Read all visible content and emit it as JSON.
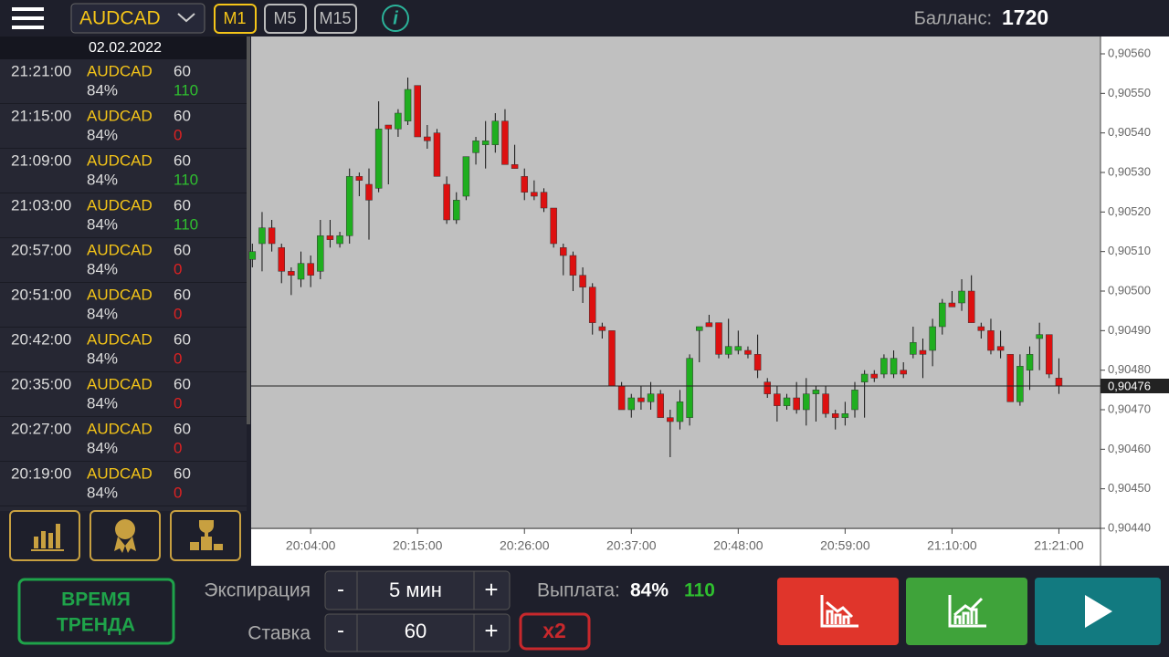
{
  "header": {
    "asset": "AUDCAD",
    "timeframes": [
      "M1",
      "M5",
      "M15"
    ],
    "balance_label": "Балланс:",
    "balance": 1720
  },
  "trades": {
    "date": "02.02.2022",
    "rows": [
      {
        "time": "21:21:00",
        "asset": "AUDCAD",
        "percent": "84%",
        "amount": 60,
        "result": 110
      },
      {
        "time": "21:15:00",
        "asset": "AUDCAD",
        "percent": "84%",
        "amount": 60,
        "result": 0
      },
      {
        "time": "21:09:00",
        "asset": "AUDCAD",
        "percent": "84%",
        "amount": 60,
        "result": 110
      },
      {
        "time": "21:03:00",
        "asset": "AUDCAD",
        "percent": "84%",
        "amount": 60,
        "result": 110
      },
      {
        "time": "20:57:00",
        "asset": "AUDCAD",
        "percent": "84%",
        "amount": 60,
        "result": 0
      },
      {
        "time": "20:51:00",
        "asset": "AUDCAD",
        "percent": "84%",
        "amount": 60,
        "result": 0
      },
      {
        "time": "20:42:00",
        "asset": "AUDCAD",
        "percent": "84%",
        "amount": 60,
        "result": 0
      },
      {
        "time": "20:35:00",
        "asset": "AUDCAD",
        "percent": "84%",
        "amount": 60,
        "result": 0
      },
      {
        "time": "20:27:00",
        "asset": "AUDCAD",
        "percent": "84%",
        "amount": 60,
        "result": 0
      },
      {
        "time": "20:19:00",
        "asset": "AUDCAD",
        "percent": "84%",
        "amount": 60,
        "result": 0
      }
    ]
  },
  "chart_data": {
    "type": "candlestick",
    "up_color": "#1fae1f",
    "down_color": "#dd1010",
    "x": [
      "19:58:00",
      "19:59:00",
      "20:00:00",
      "20:01:00",
      "20:02:00",
      "20:03:00",
      "20:04:00",
      "20:05:00",
      "20:06:00",
      "20:07:00",
      "20:08:00",
      "20:09:00",
      "20:10:00",
      "20:11:00",
      "20:12:00",
      "20:13:00",
      "20:14:00",
      "20:15:00",
      "20:16:00",
      "20:17:00",
      "20:18:00",
      "20:19:00",
      "20:20:00",
      "20:21:00",
      "20:22:00",
      "20:23:00",
      "20:24:00",
      "20:25:00",
      "20:26:00",
      "20:27:00",
      "20:28:00",
      "20:29:00",
      "20:30:00",
      "20:31:00",
      "20:32:00",
      "20:33:00",
      "20:34:00",
      "20:35:00",
      "20:36:00",
      "20:37:00",
      "20:38:00",
      "20:39:00",
      "20:40:00",
      "20:41:00",
      "20:42:00",
      "20:43:00",
      "20:44:00",
      "20:45:00",
      "20:46:00",
      "20:47:00",
      "20:48:00",
      "20:49:00",
      "20:50:00",
      "20:51:00",
      "20:52:00",
      "20:53:00",
      "20:54:00",
      "20:55:00",
      "20:56:00",
      "20:57:00",
      "20:58:00",
      "20:59:00",
      "21:00:00",
      "21:01:00",
      "21:02:00",
      "21:03:00",
      "21:04:00",
      "21:05:00",
      "21:06:00",
      "21:07:00",
      "21:08:00",
      "21:09:00",
      "21:10:00",
      "21:11:00",
      "21:12:00",
      "21:13:00",
      "21:14:00",
      "21:15:00",
      "21:16:00",
      "21:17:00",
      "21:18:00",
      "21:19:00",
      "21:20:00",
      "21:21:00"
    ],
    "open": [
      0.90508,
      0.90512,
      0.90516,
      0.90511,
      0.90505,
      0.90503,
      0.90507,
      0.90505,
      0.90514,
      0.90512,
      0.90514,
      0.90529,
      0.90527,
      0.90526,
      0.90542,
      0.90541,
      0.90543,
      0.90552,
      0.90539,
      0.9054,
      0.90527,
      0.90518,
      0.90524,
      0.90535,
      0.90537,
      0.90537,
      0.90543,
      0.90532,
      0.90529,
      0.90525,
      0.90525,
      0.90521,
      0.90511,
      0.90509,
      0.90504,
      0.90501,
      0.90491,
      0.9049,
      0.90476,
      0.9047,
      0.90473,
      0.90472,
      0.90474,
      0.90468,
      0.90467,
      0.90468,
      0.9049,
      0.90492,
      0.90492,
      0.90484,
      0.90485,
      0.90485,
      0.90484,
      0.90477,
      0.90474,
      0.90471,
      0.90473,
      0.9047,
      0.90474,
      0.90474,
      0.90469,
      0.90468,
      0.9047,
      0.90477,
      0.90479,
      0.90479,
      0.90479,
      0.9048,
      0.90484,
      0.90485,
      0.90485,
      0.90491,
      0.90497,
      0.90497,
      0.905,
      0.90491,
      0.9049,
      0.90486,
      0.90484,
      0.90472,
      0.9048,
      0.90488,
      0.90489,
      0.90478
    ],
    "high": [
      0.90512,
      0.9052,
      0.90518,
      0.90512,
      0.90506,
      0.9051,
      0.90509,
      0.90518,
      0.90518,
      0.90515,
      0.90531,
      0.9053,
      0.90531,
      0.90548,
      0.90542,
      0.90546,
      0.90554,
      0.90552,
      0.90542,
      0.90541,
      0.90529,
      0.90525,
      0.90534,
      0.90539,
      0.90543,
      0.90545,
      0.90546,
      0.90537,
      0.90531,
      0.90528,
      0.90526,
      0.90521,
      0.90512,
      0.9051,
      0.90506,
      0.90502,
      0.90492,
      0.9049,
      0.90477,
      0.90474,
      0.90476,
      0.90477,
      0.90475,
      0.9047,
      0.90475,
      0.90484,
      0.90491,
      0.90494,
      0.90492,
      0.90493,
      0.9049,
      0.90486,
      0.90489,
      0.90478,
      0.90476,
      0.90474,
      0.90477,
      0.90478,
      0.90476,
      0.90476,
      0.9047,
      0.90472,
      0.90477,
      0.9048,
      0.9048,
      0.90484,
      0.90485,
      0.90482,
      0.90491,
      0.90488,
      0.90493,
      0.90498,
      0.905,
      0.90503,
      0.90504,
      0.90492,
      0.90493,
      0.9049,
      0.90484,
      0.90484,
      0.90486,
      0.90492,
      0.90489,
      0.90483
    ],
    "low": [
      0.90506,
      0.90505,
      0.9051,
      0.90502,
      0.90499,
      0.90501,
      0.90501,
      0.90503,
      0.90511,
      0.90511,
      0.90512,
      0.90524,
      0.90513,
      0.90525,
      0.90527,
      0.90539,
      0.90542,
      0.90539,
      0.90536,
      0.90529,
      0.90517,
      0.90517,
      0.90523,
      0.90532,
      0.90531,
      0.90535,
      0.90532,
      0.90531,
      0.90523,
      0.90523,
      0.9052,
      0.90511,
      0.90504,
      0.905,
      0.90497,
      0.90489,
      0.90488,
      0.90476,
      0.9047,
      0.90468,
      0.9047,
      0.9047,
      0.90468,
      0.90458,
      0.90465,
      0.90466,
      0.90482,
      0.90491,
      0.90483,
      0.90483,
      0.90484,
      0.90483,
      0.90478,
      0.90473,
      0.90467,
      0.9047,
      0.90469,
      0.90466,
      0.90467,
      0.90468,
      0.90465,
      0.90466,
      0.90468,
      0.90468,
      0.90477,
      0.90478,
      0.90478,
      0.90478,
      0.90483,
      0.90478,
      0.90481,
      0.90489,
      0.90496,
      0.90495,
      0.90492,
      0.90488,
      0.90484,
      0.90483,
      0.90472,
      0.90471,
      0.90475,
      0.9048,
      0.90478,
      0.90474
    ],
    "close": [
      0.9051,
      0.90516,
      0.90512,
      0.90505,
      0.90504,
      0.90507,
      0.90504,
      0.90514,
      0.90513,
      0.90514,
      0.90529,
      0.90528,
      0.90523,
      0.90541,
      0.90541,
      0.90545,
      0.90551,
      0.90539,
      0.90538,
      0.90529,
      0.90518,
      0.90523,
      0.90534,
      0.90538,
      0.90538,
      0.90543,
      0.90532,
      0.90531,
      0.90525,
      0.90524,
      0.90521,
      0.90512,
      0.90509,
      0.90504,
      0.90501,
      0.90492,
      0.9049,
      0.90476,
      0.9047,
      0.90473,
      0.90472,
      0.90474,
      0.90468,
      0.90467,
      0.90472,
      0.90483,
      0.90491,
      0.90491,
      0.90484,
      0.90486,
      0.90486,
      0.90484,
      0.9048,
      0.90474,
      0.90471,
      0.90473,
      0.9047,
      0.90474,
      0.90475,
      0.90469,
      0.90468,
      0.90469,
      0.90475,
      0.90479,
      0.90478,
      0.90483,
      0.90483,
      0.90479,
      0.90487,
      0.90484,
      0.90491,
      0.90497,
      0.90496,
      0.905,
      0.90492,
      0.9049,
      0.90485,
      0.90485,
      0.90472,
      0.90481,
      0.90484,
      0.90489,
      0.90479,
      0.90476
    ],
    "ylim": [
      0.9044,
      0.9056
    ],
    "yticks": [
      {
        "value": 0.9044,
        "label": "0,90440"
      },
      {
        "value": 0.9045,
        "label": "0,90450"
      },
      {
        "value": 0.9046,
        "label": "0,90460"
      },
      {
        "value": 0.9047,
        "label": "0,90470"
      },
      {
        "value": 0.9048,
        "label": "0,90480"
      },
      {
        "value": 0.9049,
        "label": "0,90490"
      },
      {
        "value": 0.905,
        "label": "0,90500"
      },
      {
        "value": 0.9051,
        "label": "0,90510"
      },
      {
        "value": 0.9052,
        "label": "0,90520"
      },
      {
        "value": 0.9053,
        "label": "0,90530"
      },
      {
        "value": 0.9054,
        "label": "0,90540"
      },
      {
        "value": 0.9055,
        "label": "0,90550"
      },
      {
        "value": 0.9056,
        "label": "0,90560"
      }
    ],
    "xticks": [
      "20:04:00",
      "20:15:00",
      "20:26:00",
      "20:37:00",
      "20:48:00",
      "20:59:00",
      "21:10:00",
      "21:21:00"
    ],
    "current_price": {
      "value": 0.90476,
      "label": "0,90476"
    }
  },
  "footer": {
    "trend_button": [
      "ВРЕМЯ",
      "ТРЕНДА"
    ],
    "expiration_label": "Экспирация",
    "expiration": "5 мин",
    "stake_label": "Ставка",
    "stake": 60,
    "minus": "-",
    "plus": "+",
    "multiplier": "x2",
    "payout_label": "Выплата:",
    "payout_percent": "84%",
    "payout_amount": 110
  }
}
